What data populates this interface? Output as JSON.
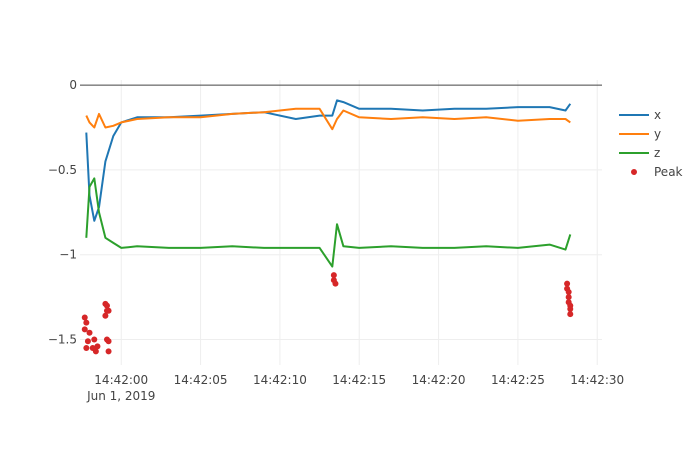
{
  "chart_data": {
    "type": "line",
    "title": "",
    "xlabel": "",
    "ylabel": "",
    "x_axis": {
      "type": "time",
      "range": [
        "2019-06-01T14:41:57.4",
        "2019-06-01T14:42:30.3"
      ],
      "tick_labels": [
        "14:42:00",
        "14:42:05",
        "14:42:10",
        "14:42:15",
        "14:42:20",
        "14:42:25",
        "14:42:30"
      ],
      "date_label": "Jun 1, 2019"
    },
    "y_axis": {
      "range": [
        -1.65,
        0.03
      ],
      "ticks": [
        0,
        -0.5,
        -1,
        -1.5
      ],
      "tick_labels": [
        "0",
        "−0.5",
        "−1",
        "−1.5"
      ]
    },
    "grid": true,
    "legend_position": "right",
    "series": [
      {
        "name": "x",
        "color": "#1f77b4",
        "x": [
          "2019-06-01T14:41:57.8",
          "2019-06-01T14:41:58.0",
          "2019-06-01T14:41:58.3",
          "2019-06-01T14:41:58.6",
          "2019-06-01T14:41:59.0",
          "2019-06-01T14:41:59.5",
          "2019-06-01T14:42:00.0",
          "2019-06-01T14:42:01.0",
          "2019-06-01T14:42:03.0",
          "2019-06-01T14:42:05.0",
          "2019-06-01T14:42:07.0",
          "2019-06-01T14:42:09.0",
          "2019-06-01T14:42:11.0",
          "2019-06-01T14:42:12.5",
          "2019-06-01T14:42:13.3",
          "2019-06-01T14:42:13.6",
          "2019-06-01T14:42:14.0",
          "2019-06-01T14:42:15.0",
          "2019-06-01T14:42:17.0",
          "2019-06-01T14:42:19.0",
          "2019-06-01T14:42:21.0",
          "2019-06-01T14:42:23.0",
          "2019-06-01T14:42:25.0",
          "2019-06-01T14:42:27.0",
          "2019-06-01T14:42:28.0",
          "2019-06-01T14:42:28.3"
        ],
        "y": [
          -0.28,
          -0.65,
          -0.8,
          -0.72,
          -0.45,
          -0.3,
          -0.22,
          -0.19,
          -0.19,
          -0.18,
          -0.17,
          -0.16,
          -0.2,
          -0.18,
          -0.18,
          -0.09,
          -0.1,
          -0.14,
          -0.14,
          -0.15,
          -0.14,
          -0.14,
          -0.13,
          -0.13,
          -0.15,
          -0.11
        ]
      },
      {
        "name": "y",
        "color": "#ff7f0e",
        "x": [
          "2019-06-01T14:41:57.8",
          "2019-06-01T14:41:58.0",
          "2019-06-01T14:41:58.3",
          "2019-06-01T14:41:58.6",
          "2019-06-01T14:41:59.0",
          "2019-06-01T14:41:59.5",
          "2019-06-01T14:42:00.0",
          "2019-06-01T14:42:01.0",
          "2019-06-01T14:42:03.0",
          "2019-06-01T14:42:05.0",
          "2019-06-01T14:42:07.0",
          "2019-06-01T14:42:09.0",
          "2019-06-01T14:42:11.0",
          "2019-06-01T14:42:12.5",
          "2019-06-01T14:42:13.3",
          "2019-06-01T14:42:13.6",
          "2019-06-01T14:42:14.0",
          "2019-06-01T14:42:15.0",
          "2019-06-01T14:42:17.0",
          "2019-06-01T14:42:19.0",
          "2019-06-01T14:42:21.0",
          "2019-06-01T14:42:23.0",
          "2019-06-01T14:42:25.0",
          "2019-06-01T14:42:27.0",
          "2019-06-01T14:42:28.0",
          "2019-06-01T14:42:28.3"
        ],
        "y": [
          -0.18,
          -0.22,
          -0.25,
          -0.17,
          -0.25,
          -0.24,
          -0.22,
          -0.2,
          -0.19,
          -0.19,
          -0.17,
          -0.16,
          -0.14,
          -0.14,
          -0.26,
          -0.2,
          -0.15,
          -0.19,
          -0.2,
          -0.19,
          -0.2,
          -0.19,
          -0.21,
          -0.2,
          -0.2,
          -0.22
        ]
      },
      {
        "name": "z",
        "color": "#2ca02c",
        "x": [
          "2019-06-01T14:41:57.8",
          "2019-06-01T14:41:58.0",
          "2019-06-01T14:41:58.3",
          "2019-06-01T14:41:58.6",
          "2019-06-01T14:41:59.0",
          "2019-06-01T14:41:59.5",
          "2019-06-01T14:42:00.0",
          "2019-06-01T14:42:01.0",
          "2019-06-01T14:42:03.0",
          "2019-06-01T14:42:05.0",
          "2019-06-01T14:42:07.0",
          "2019-06-01T14:42:09.0",
          "2019-06-01T14:42:11.0",
          "2019-06-01T14:42:12.5",
          "2019-06-01T14:42:13.3",
          "2019-06-01T14:42:13.6",
          "2019-06-01T14:42:14.0",
          "2019-06-01T14:42:15.0",
          "2019-06-01T14:42:17.0",
          "2019-06-01T14:42:19.0",
          "2019-06-01T14:42:21.0",
          "2019-06-01T14:42:23.0",
          "2019-06-01T14:42:25.0",
          "2019-06-01T14:42:27.0",
          "2019-06-01T14:42:28.0",
          "2019-06-01T14:42:28.3"
        ],
        "y": [
          -0.9,
          -0.6,
          -0.55,
          -0.75,
          -0.9,
          -0.93,
          -0.96,
          -0.95,
          -0.96,
          -0.96,
          -0.95,
          -0.96,
          -0.96,
          -0.96,
          -1.07,
          -0.82,
          -0.95,
          -0.96,
          -0.95,
          -0.96,
          -0.96,
          -0.95,
          -0.96,
          -0.94,
          -0.97,
          -0.88
        ]
      },
      {
        "name": "Peak",
        "mode": "markers",
        "color": "#d62728",
        "x": [
          "2019-06-01T14:41:57.7",
          "2019-06-01T14:41:57.7",
          "2019-06-01T14:41:57.8",
          "2019-06-01T14:41:57.8",
          "2019-06-01T14:41:57.9",
          "2019-06-01T14:41:58.0",
          "2019-06-01T14:41:58.2",
          "2019-06-01T14:41:58.3",
          "2019-06-01T14:41:58.4",
          "2019-06-01T14:41:58.5",
          "2019-06-01T14:41:59.0",
          "2019-06-01T14:41:59.0",
          "2019-06-01T14:41:59.1",
          "2019-06-01T14:41:59.1",
          "2019-06-01T14:41:59.1",
          "2019-06-01T14:41:59.2",
          "2019-06-01T14:41:59.2",
          "2019-06-01T14:41:59.2",
          "2019-06-01T14:42:13.4",
          "2019-06-01T14:42:13.4",
          "2019-06-01T14:42:13.5",
          "2019-06-01T14:42:28.1",
          "2019-06-01T14:42:28.1",
          "2019-06-01T14:42:28.2",
          "2019-06-01T14:42:28.2",
          "2019-06-01T14:42:28.2",
          "2019-06-01T14:42:28.3",
          "2019-06-01T14:42:28.3",
          "2019-06-01T14:42:28.3"
        ],
        "y": [
          -1.37,
          -1.44,
          -1.4,
          -1.55,
          -1.51,
          -1.46,
          -1.55,
          -1.5,
          -1.57,
          -1.54,
          -1.29,
          -1.36,
          -1.3,
          -1.33,
          -1.5,
          -1.57,
          -1.33,
          -1.51,
          -1.12,
          -1.15,
          -1.17,
          -1.17,
          -1.2,
          -1.22,
          -1.25,
          -1.28,
          -1.3,
          -1.32,
          -1.35
        ]
      }
    ]
  }
}
